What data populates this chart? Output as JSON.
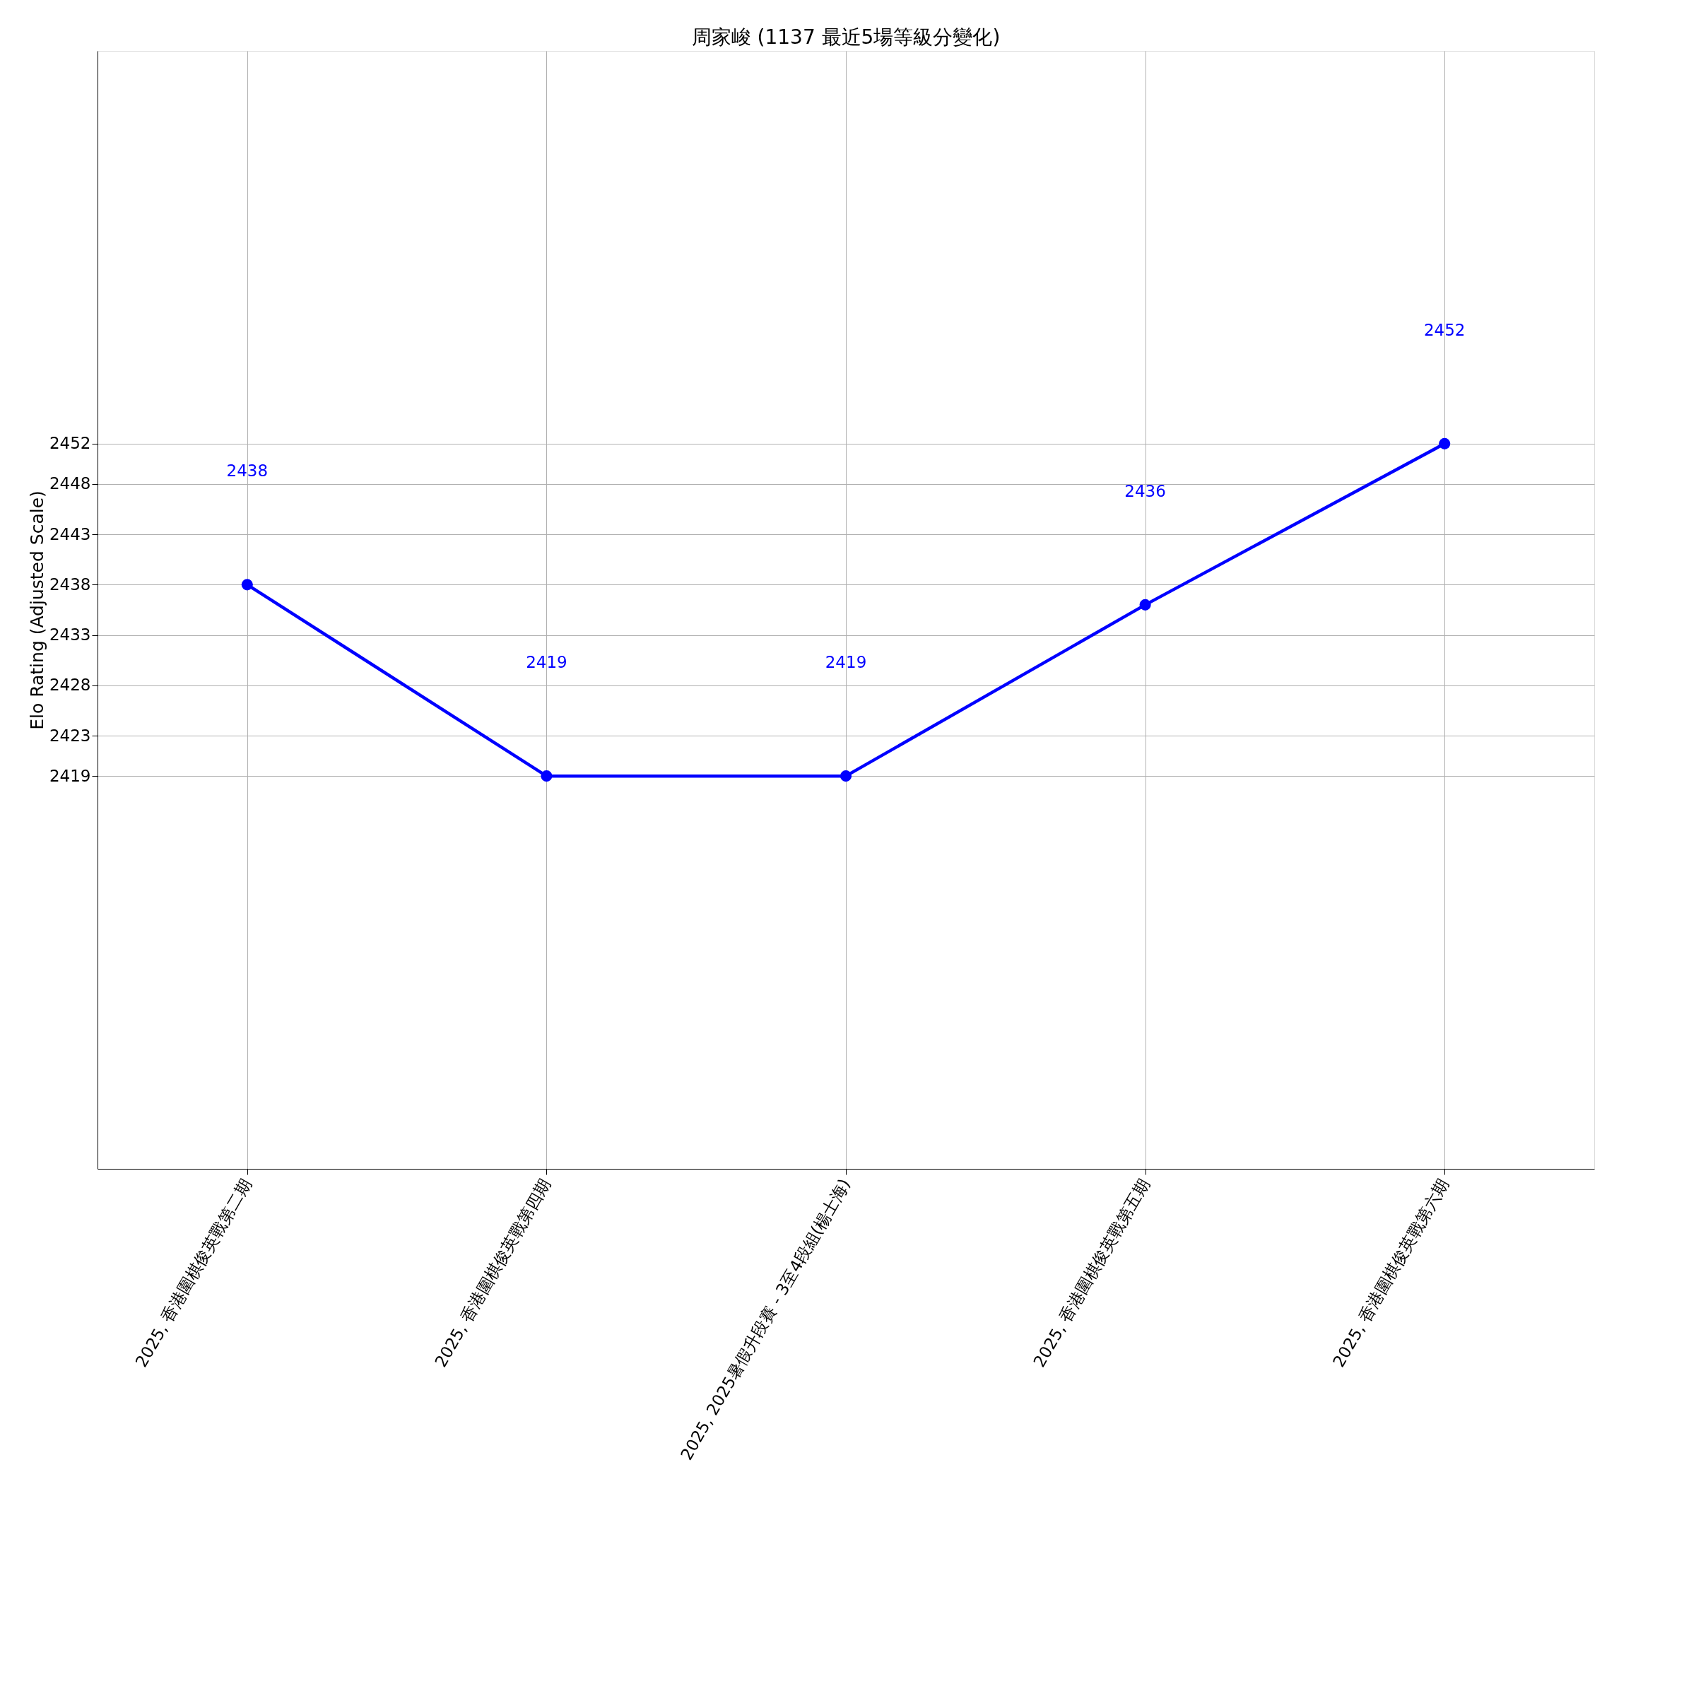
{
  "chart_data": {
    "type": "line",
    "title": "周家峻 (1137 最近5場等級分變化)",
    "ylabel": "Elo Rating (Adjusted Scale)",
    "categories": [
      "2025, 香港圍棋俊英戰第二期",
      "2025, 香港圍棋俊英戰第四期",
      "2025, 2025暑假升段賽 - 3至4段組(楊士海)",
      "2025, 香港圍棋俊英戰第五期",
      "2025, 香港圍棋俊英戰第六期"
    ],
    "series": [
      {
        "color": "#0000ff",
        "values": [
          2438,
          2419,
          2419,
          2436,
          2452
        ]
      }
    ],
    "ylim": [
      2380,
      2491
    ],
    "yticks": [
      2419,
      2423,
      2428,
      2433,
      2438,
      2443,
      2448,
      2452
    ],
    "annotations": [
      "2438",
      "2419",
      "2419",
      "2436",
      "2452"
    ],
    "grid": true,
    "marker": "circle",
    "line_style": "solid"
  }
}
